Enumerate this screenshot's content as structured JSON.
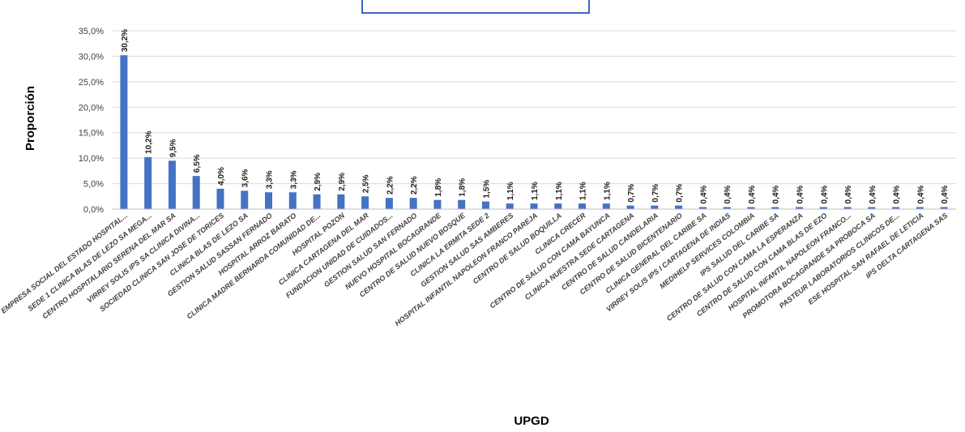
{
  "chart_data": {
    "type": "bar",
    "title": "",
    "xlabel": "UPGD",
    "ylabel": "Proporción",
    "ylim": [
      0,
      35
    ],
    "yticks": [
      "0,0%",
      "5,0%",
      "10,0%",
      "15,0%",
      "20,0%",
      "25,0%",
      "30,0%",
      "35,0%"
    ],
    "grid": true,
    "legend": "none",
    "bar_color": "#4472c4",
    "categories": [
      "EMPRESA SOCIAL DEL ESTADO HOSPITAL...",
      "SEDE 1 CLINICA BLAS DE LEZO  SA  MEGA...",
      "CENTRO HOSPITALARIO SERENA DEL MAR SA",
      "VIRREY  SOLIS IPS SA CLINICA DIVINA...",
      "SOCIEDAD CLINICA SAN JOSE DE TORICES",
      "CLINICA  BLAS  DE  LEZO SA",
      "GESTION SALUD SASSAN FERNADO",
      "HOSPITAL ARROZ BARATO",
      "CLINICA MADRE BERNARDA COMUNIDAD DE...",
      "HOSPITAL POZON",
      "CLINICA  CARTAGENA DEL MAR",
      "FUNDACION UNIDAD DE CUIDADOS...",
      "GESTION SALUD SAN FERNADO",
      "NUEVO HOSPITAL BOCAGRANDE",
      "CENTRO DE SALUD NUEVO BOSQUE",
      "CLINICA LA ERMITA SEDE 2",
      "GESTION SALUD SAS AMBERES",
      "HOSPITAL INFANTIL NAPOLEON FRANCO PAREJA",
      "CENTRO DE SALUD BOQUILLA",
      "CLINICA CRECER",
      "CENTRO DE SALUD CON CAMA BAYUNCA",
      "CLINICA NUESTRA SEDE CARTAGENA",
      "CENTRO DE SALUD CANDELARIA",
      "CENTRO DE SALUD BICENTENARIO",
      "CLINICA GENERAL DEL CARIBE SA",
      "VIRREY SOLIS IPS I CARTAGENA DE INDIAS",
      "MEDIHELP SERVICES COLOMBIA",
      "IPS SALUD DEL CARIBE SA",
      "CENTRO DE SALUD CON CAMA LA ESPERANZA",
      "CENTRO DE SALUD CON CAMA BLAS DE EZO",
      "HOSPITAL INFANTIL NAPOLEON FRANCO...",
      "PROMOTORA  BOCAGRANDE  SA PROBOCA SA",
      "PASTEUR LABORATORIOS CLINICOS DE...",
      "ESE HOSPITAL SAN RAFAEL DE LETICIA",
      "IPS DELTA CARTAGENA SAS"
    ],
    "values": [
      30.2,
      10.2,
      9.5,
      6.5,
      4.0,
      3.6,
      3.3,
      3.3,
      2.9,
      2.9,
      2.5,
      2.2,
      2.2,
      1.8,
      1.8,
      1.5,
      1.1,
      1.1,
      1.1,
      1.1,
      1.1,
      0.7,
      0.7,
      0.7,
      0.4,
      0.4,
      0.4,
      0.4,
      0.4,
      0.4,
      0.4,
      0.4,
      0.4,
      0.4,
      0.4
    ],
    "data_labels": [
      "30,2%",
      "10,2%",
      "9,5%",
      "6,5%",
      "4,0%",
      "3,6%",
      "3,3%",
      "3,3%",
      "2,9%",
      "2,9%",
      "2,5%",
      "2,2%",
      "2,2%",
      "1,8%",
      "1,8%",
      "1,5%",
      "1,1%",
      "1,1%",
      "1,1%",
      "1,1%",
      "1,1%",
      "0,7%",
      "0,7%",
      "0,7%",
      "0,4%",
      "0,4%",
      "0,4%",
      "0,4%",
      "0,4%",
      "0,4%",
      "0,4%",
      "0,4%",
      "0,4%",
      "0,4%",
      "0,4%"
    ]
  }
}
